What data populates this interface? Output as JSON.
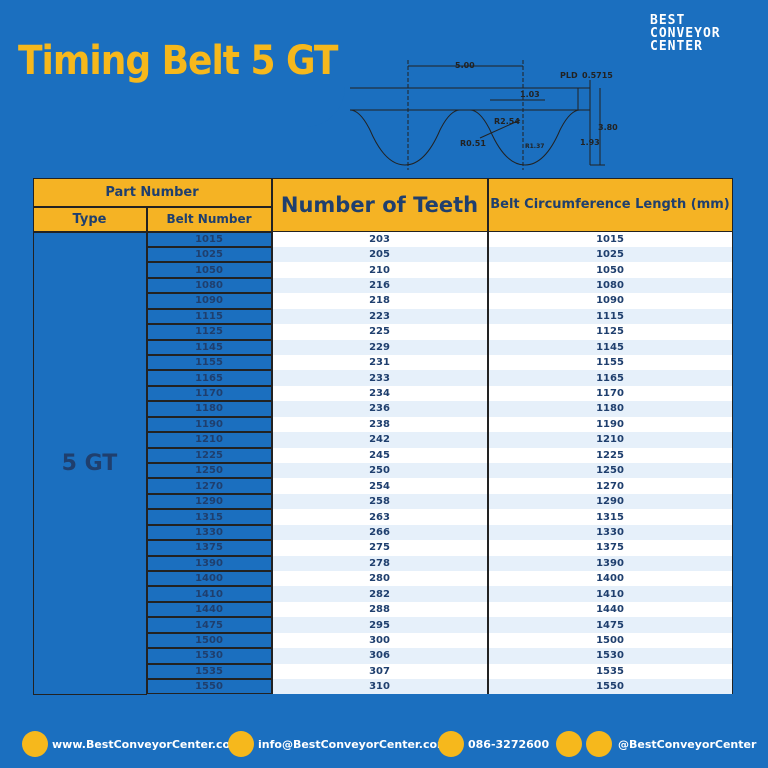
{
  "header": {
    "title": "Timing Belt 5 GT",
    "logo": [
      "BEST",
      "CONVEYOR",
      "CENTER"
    ]
  },
  "diagram": {
    "labels": {
      "pitch": "5.00",
      "pld": "PLD",
      "pld_value": "0.5715",
      "land": "1.03",
      "r_tip": "R2.54",
      "total_height": "3.80",
      "r_root": "R0.51",
      "r_small": "R1.37",
      "tooth_height": "1.93"
    }
  },
  "table": {
    "headers": {
      "part_number": "Part Number",
      "type": "Type",
      "belt_number": "Belt Number",
      "teeth": "Number of Teeth",
      "length": "Belt Circumference Length (mm)"
    },
    "type": "5 GT",
    "rows": [
      [
        1015,
        203,
        1015
      ],
      [
        1025,
        205,
        1025
      ],
      [
        1050,
        210,
        1050
      ],
      [
        1080,
        216,
        1080
      ],
      [
        1090,
        218,
        1090
      ],
      [
        1115,
        223,
        1115
      ],
      [
        1125,
        225,
        1125
      ],
      [
        1145,
        229,
        1145
      ],
      [
        1155,
        231,
        1155
      ],
      [
        1165,
        233,
        1165
      ],
      [
        1170,
        234,
        1170
      ],
      [
        1180,
        236,
        1180
      ],
      [
        1190,
        238,
        1190
      ],
      [
        1210,
        242,
        1210
      ],
      [
        1225,
        245,
        1225
      ],
      [
        1250,
        250,
        1250
      ],
      [
        1270,
        254,
        1270
      ],
      [
        1290,
        258,
        1290
      ],
      [
        1315,
        263,
        1315
      ],
      [
        1330,
        266,
        1330
      ],
      [
        1375,
        275,
        1375
      ],
      [
        1390,
        278,
        1390
      ],
      [
        1400,
        280,
        1400
      ],
      [
        1410,
        282,
        1410
      ],
      [
        1440,
        288,
        1440
      ],
      [
        1475,
        295,
        1475
      ],
      [
        1500,
        300,
        1500
      ],
      [
        1530,
        306,
        1530
      ],
      [
        1535,
        307,
        1535
      ],
      [
        1550,
        310,
        1550
      ]
    ]
  },
  "footer": {
    "website": "www.BestConveyorCenter.com",
    "email": "info@BestConveyorCenter.com",
    "phone": "086-3272600",
    "social": "@BestConveyorCenter"
  }
}
